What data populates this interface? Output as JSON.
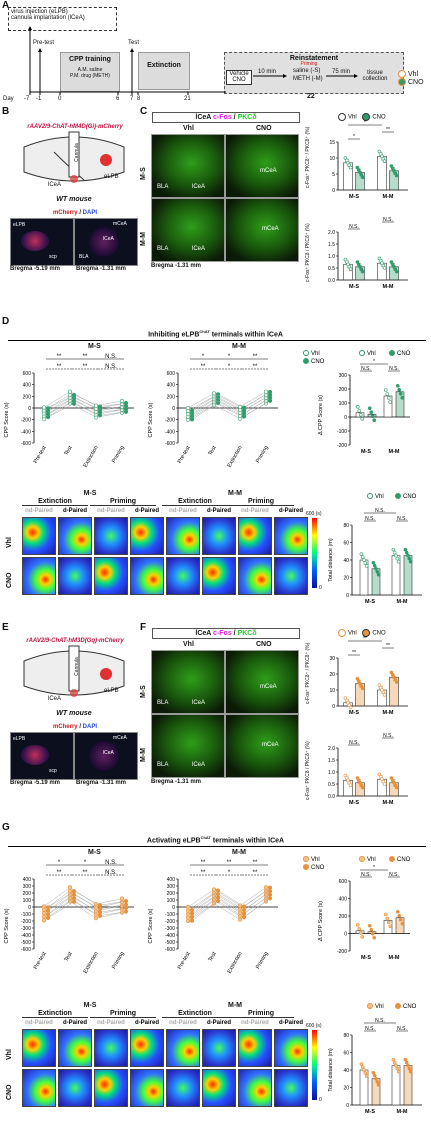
{
  "panelA": {
    "label": "A",
    "box1": "virus injection (eLPB)",
    "box2": "cannula implantation (lCeA)",
    "pretest": "Pre-test",
    "cpp": "CPP training",
    "am": "A.M. saline",
    "pm": "P.M. drug (METH)",
    "test": "Test",
    "extinction": "Extinction",
    "reinst": "Reinstatement",
    "vehicle": "Vehicle",
    "cno": "CNO",
    "min10": "10 min",
    "priming": "Priming",
    "priming_text": "saline (-S)",
    "meth": "METH (-M)",
    "min75": "75 min",
    "tissue": "tissue",
    "collection": "collection",
    "day": "Day",
    "ticks": [
      "-7",
      "-1",
      "0",
      "6",
      "7",
      "8",
      "21",
      "22"
    ],
    "legend": [
      "Vhl",
      "CNO"
    ]
  },
  "panelB": {
    "label": "B",
    "virus": "rAAV2/9-ChAT-hM4D(Gi)-mCherry",
    "cannula": "Cannula",
    "lcea": "lCeA",
    "elpb": "eLPB",
    "mouse": "WT mouse",
    "stain1": "mCherry",
    "stain2": "DAPI",
    "scp": "scp",
    "bregma1": "Bregma -5.19 mm",
    "bregma2": "Bregma -1.31 mm"
  },
  "panelC": {
    "label": "C",
    "title1": "lCeA",
    "title2": "c-Fos",
    "title3": "PKCδ",
    "vhl": "Vhl",
    "cno": "CNO",
    "ms": "M-S",
    "mm": "M-M",
    "bla": "BLA",
    "lcea": "lCeA",
    "mcea": "mCeA",
    "bregma": "Bregma -1.31 mm",
    "y1": "c-Fos⁺ PKCδ⁺ / PKCδ⁺ (%)",
    "y2": "c-Fos⁺ PKCδ / PKCδ⁺ (%)",
    "ticks1": [
      "0",
      "5",
      "10",
      "15"
    ],
    "ticks2": [
      "0.0",
      "0.5",
      "1.0",
      "1.5",
      "2.0"
    ],
    "sig": [
      "*",
      "*",
      "**",
      "N.S.",
      "N.S.",
      "N.S."
    ],
    "groups": [
      "M-S",
      "M-M"
    ],
    "legend": [
      "Vhl",
      "CNO"
    ]
  },
  "panelD": {
    "label": "D",
    "title": "Inhibiting eLPB",
    "titlesup": "ChAT",
    "title_end": " terminals within lCeA",
    "ms": "M-S",
    "mm": "M-M",
    "ylab": "CPP Score (s)",
    "dylab": "Δ CPP Score (s)",
    "yticks": [
      "600",
      "400",
      "200",
      "0",
      "-200",
      "-400",
      "-600"
    ],
    "dticks": [
      "300",
      "200",
      "100",
      "0",
      "-100",
      "-200"
    ],
    "phases": [
      "Pre-test",
      "Test",
      "Extinction",
      "Priming"
    ],
    "sig_ms": [
      "**",
      "**",
      "N.S.",
      "**",
      "**",
      "N.S."
    ],
    "sig_mm": [
      "*",
      "*",
      "**",
      "**",
      "*",
      "**"
    ],
    "sig_d": [
      "N.S.",
      "*",
      "N.S."
    ],
    "legend": [
      "Vhl",
      "CNO"
    ],
    "heat_titles": [
      "Extinction",
      "Priming",
      "Extinction",
      "Priming"
    ],
    "heat_sub": [
      "nd-Paired",
      "d-Paired",
      "nd-Paired",
      "d-Paired",
      "nd-Paired",
      "d-Paired",
      "nd-Paired",
      "d-Paired"
    ],
    "rows": [
      "Vhl",
      "CNO"
    ],
    "scale": "600 (s)",
    "scale0": "0",
    "dist": "Total distance (m)",
    "dticks2": [
      "0",
      "20",
      "40",
      "60",
      "80"
    ],
    "sig_dist": [
      "N.S.",
      "N.S.",
      "N.S."
    ],
    "groups": [
      "M-S",
      "M-M"
    ]
  },
  "panelE": {
    "label": "E",
    "virus": "rAAV2/9-ChAT-hM3D(Gq)-mCherry",
    "cannula": "Cannula",
    "lcea": "lCeA",
    "elpb": "eLPB",
    "mouse": "WT mouse",
    "stain1": "mCherry",
    "stain2": "DAPI",
    "scp": "scp",
    "bregma1": "Bregma -5.19 mm",
    "bregma2": "Bregma -1.31 mm"
  },
  "panelF": {
    "label": "F",
    "title1": "lCeA",
    "title2": "c-Fos",
    "title3": "PKCδ",
    "vhl": "Vhl",
    "cno": "CNO",
    "ms": "M-S",
    "mm": "M-M",
    "bla": "BLA",
    "lcea": "lCeA",
    "mcea": "mCeA",
    "bregma": "Bregma -1.31 mm",
    "y1": "c-Fos⁺ PKCδ⁺ / PKCδ⁺ (%)",
    "y2": "c-Fos⁺ PKCδ / PKCδ⁺ (%)",
    "ticks1": [
      "0",
      "10",
      "20",
      "30"
    ],
    "ticks2": [
      "0.0",
      "0.5",
      "1.0",
      "1.5",
      "2.0"
    ],
    "sig": [
      "**",
      "**",
      "**",
      "N.S.",
      "N.S.",
      "N.S."
    ],
    "groups": [
      "M-S",
      "M-M"
    ],
    "legend": [
      "Vhl",
      "CNO"
    ]
  },
  "panelG": {
    "label": "G",
    "title": "Activating eLPB",
    "titlesup": "ChAT",
    "title_end": " terminals within lCeA",
    "ms": "M-S",
    "mm": "M-M",
    "ylab": "CPP Score (s)",
    "dylab": "Δ CPP Score (s)",
    "yticks": [
      "400",
      "300",
      "200",
      "100",
      "0",
      "-100",
      "-200",
      "-300",
      "-400",
      "-500",
      "-600"
    ],
    "dticks": [
      "600",
      "400",
      "200",
      "0",
      "-200"
    ],
    "phases": [
      "Pre-test",
      "Test",
      "Extinction",
      "Priming"
    ],
    "sig_ms": [
      "*",
      "*",
      "N.S.",
      "**",
      "**",
      "N.S."
    ],
    "sig_mm": [
      "**",
      "**",
      "**",
      "**",
      "*",
      "**"
    ],
    "sig_d": [
      "N.S.",
      "*",
      "N.S."
    ],
    "legend": [
      "Vhl",
      "CNO"
    ],
    "heat_titles": [
      "Extinction",
      "Priming",
      "Extinction",
      "Priming"
    ],
    "heat_sub": [
      "nd-Paired",
      "d-Paired",
      "nd-Paired",
      "d-Paired",
      "nd-Paired",
      "d-Paired",
      "nd-Paired",
      "d-Paired"
    ],
    "rows": [
      "Vhl",
      "CNO"
    ],
    "scale": "600 (s)",
    "scale0": "0",
    "dist": "Total distance (m)",
    "dticks2": [
      "0",
      "20",
      "40",
      "60",
      "80"
    ],
    "sig_dist": [
      "N.S.",
      "N.S.",
      "N.S."
    ],
    "groups": [
      "M-S",
      "M-M"
    ]
  },
  "colors": {
    "vhl": "#ffffff",
    "cno_green": "#2e9e6a",
    "cno_orange": "#e8913a",
    "vhl_orange_fill": "#f6c58e",
    "green": "#28c928",
    "magenta": "#e020e0"
  }
}
